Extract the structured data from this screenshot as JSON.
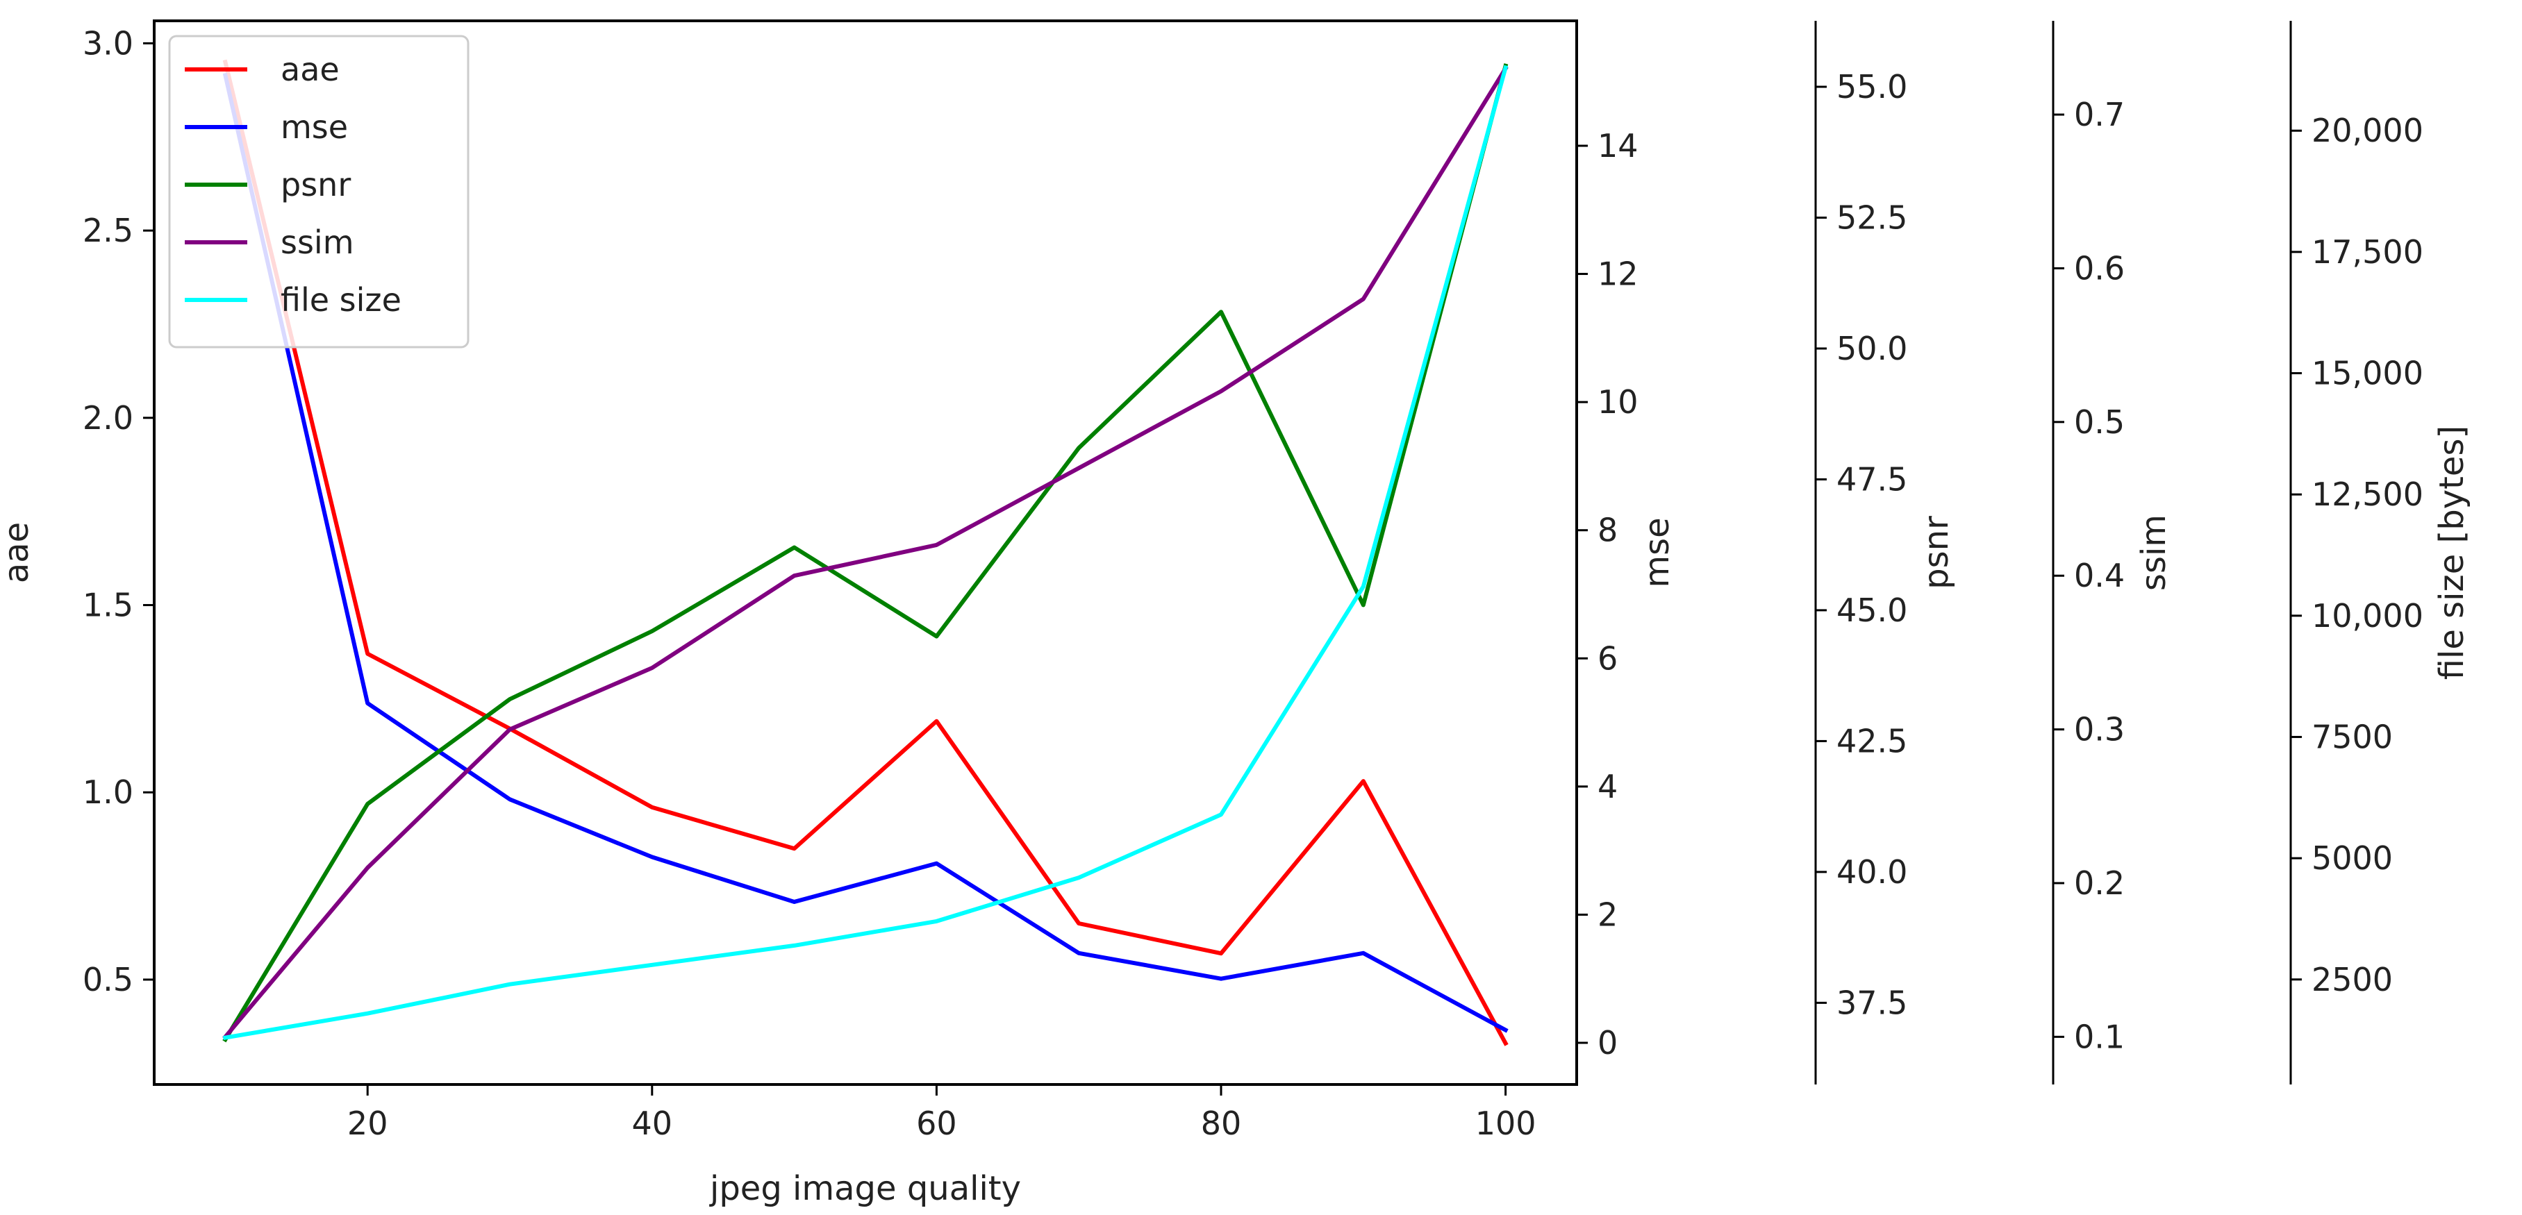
{
  "chart_data": {
    "type": "line",
    "title": "",
    "xlabel": "jpeg image quality",
    "x": [
      10,
      20,
      30,
      40,
      50,
      60,
      70,
      80,
      90,
      100
    ],
    "xlim": [
      5,
      105
    ],
    "xticks": [
      20,
      40,
      60,
      80,
      100
    ],
    "grid": false,
    "legend": {
      "position": "top-left",
      "entries": [
        "aae",
        "mse",
        "psnr",
        "ssim",
        "file size"
      ]
    },
    "series": [
      {
        "name": "aae",
        "color": "#ff0000",
        "axis": "aae",
        "values": [
          2.95,
          1.37,
          1.17,
          0.96,
          0.85,
          1.19,
          0.65,
          0.57,
          1.03,
          0.33
        ]
      },
      {
        "name": "mse",
        "color": "#0000ff",
        "axis": "mse",
        "values": [
          15.1,
          5.3,
          3.8,
          2.9,
          2.2,
          2.8,
          1.4,
          1.0,
          1.4,
          0.2
        ]
      },
      {
        "name": "psnr",
        "color": "#008000",
        "axis": "psnr",
        "values": [
          36.8,
          41.3,
          43.3,
          44.6,
          46.2,
          44.5,
          48.1,
          50.7,
          45.1,
          55.4
        ]
      },
      {
        "name": "ssim",
        "color": "#800080",
        "axis": "ssim",
        "values": [
          0.1,
          0.21,
          0.3,
          0.34,
          0.4,
          0.42,
          0.47,
          0.52,
          0.58,
          0.73
        ]
      },
      {
        "name": "file size",
        "color": "#00ffff",
        "axis": "file size",
        "values": [
          1300,
          1800,
          2400,
          2800,
          3200,
          3700,
          4600,
          5900,
          10600,
          21300
        ]
      }
    ],
    "axes": [
      {
        "name": "aae",
        "side": "left",
        "label": "aae",
        "lim": [
          0.22,
          3.06
        ],
        "ticks": [
          0.5,
          1.0,
          1.5,
          2.0,
          2.5,
          3.0
        ],
        "tick_labels": [
          "0.5",
          "1.0",
          "1.5",
          "2.0",
          "2.5",
          "3.0"
        ]
      },
      {
        "name": "mse",
        "side": "right",
        "label": "mse",
        "lim": [
          -0.65,
          15.95
        ],
        "ticks": [
          0,
          2,
          4,
          6,
          8,
          10,
          12,
          14
        ],
        "tick_labels": [
          "0",
          "2",
          "4",
          "6",
          "8",
          "10",
          "12",
          "14"
        ]
      },
      {
        "name": "psnr",
        "side": "right",
        "label": "psnr",
        "lim": [
          35.94,
          56.26
        ],
        "ticks": [
          37.5,
          40.0,
          42.5,
          45.0,
          47.5,
          50.0,
          52.5,
          55.0
        ],
        "tick_labels": [
          "37.5",
          "40.0",
          "42.5",
          "45.0",
          "47.5",
          "50.0",
          "52.5",
          "55.0"
        ]
      },
      {
        "name": "ssim",
        "side": "right",
        "label": "ssim",
        "lim": [
          0.069,
          0.761
        ],
        "ticks": [
          0.1,
          0.2,
          0.3,
          0.4,
          0.5,
          0.6,
          0.7
        ],
        "tick_labels": [
          "0.1",
          "0.2",
          "0.3",
          "0.4",
          "0.5",
          "0.6",
          "0.7"
        ]
      },
      {
        "name": "file size",
        "side": "right",
        "label": "file size [bytes]",
        "lim": [
          335,
          22265
        ],
        "ticks": [
          2500,
          5000,
          7500,
          10000,
          12500,
          15000,
          17500,
          20000
        ],
        "tick_labels": [
          "2500",
          "5000",
          "7500",
          "10,000",
          "12,500",
          "15,000",
          "17,500",
          "20,000"
        ]
      }
    ]
  }
}
